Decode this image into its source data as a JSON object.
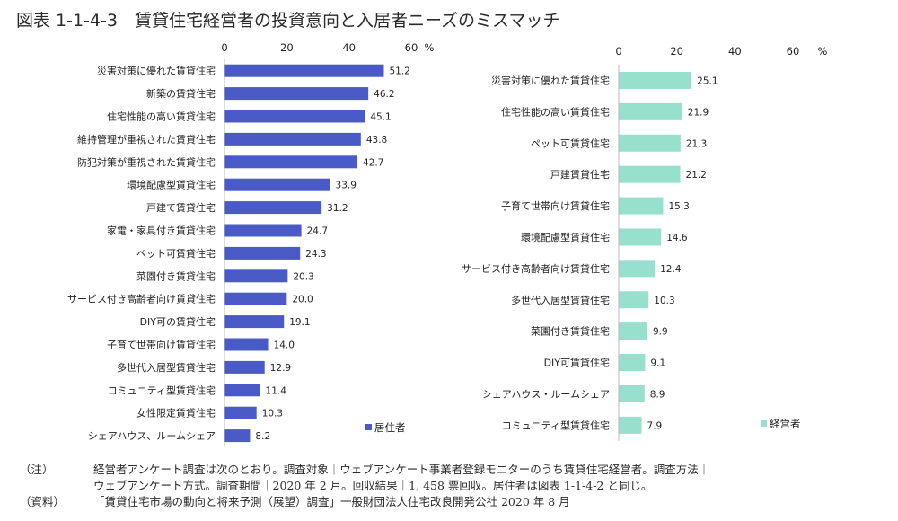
{
  "figure": {
    "title": "図表 1-1-4-3　賃貸住宅経営者の投資意向と入居者ニーズのミスマッチ"
  },
  "chart_data": [
    {
      "type": "bar",
      "orientation": "horizontal",
      "title": "",
      "unit": "%",
      "xlim": [
        0,
        60
      ],
      "ticks": [
        0,
        20,
        40,
        60
      ],
      "grid": false,
      "legend": "居住者",
      "legend_position": "bottom-right",
      "color": "#4a5bc8",
      "categories": [
        "災害対策に優れた賃貸住宅",
        "新築の賃貸住宅",
        "住宅性能の高い賃貸住宅",
        "維持管理が重視された賃貸住宅",
        "防犯対策が重視された賃貸住宅",
        "環境配慮型賃貸住宅",
        "戸建て賃貸住宅",
        "家電・家具付き賃貸住宅",
        "ペット可賃貸住宅",
        "菜園付き賃貸住宅",
        "サービス付き高齢者向け賃貸住宅",
        "DIY可の賃貸住宅",
        "子育て世帯向け賃貸住宅",
        "多世代入居型賃貸住宅",
        "コミュニティ型賃貸住宅",
        "女性限定賃貸住宅",
        "シェアハウス、ルームシェア"
      ],
      "values": [
        51.2,
        46.2,
        45.1,
        43.8,
        42.7,
        33.9,
        31.2,
        24.7,
        24.3,
        20.3,
        20.0,
        19.1,
        14.0,
        12.9,
        11.4,
        10.3,
        8.2
      ],
      "value_labels": [
        "51.2",
        "46.2",
        "45.1",
        "43.8",
        "42.7",
        "33.9",
        "31.2",
        "24.7",
        "24.3",
        "20.3",
        "20.0",
        "19.1",
        "14.0",
        "12.9",
        "11.4",
        "10.3",
        "8.2"
      ]
    },
    {
      "type": "bar",
      "orientation": "horizontal",
      "title": "",
      "unit": "%",
      "xlim": [
        0,
        60
      ],
      "ticks": [
        0,
        20,
        40,
        60
      ],
      "grid": false,
      "legend": "経営者",
      "legend_position": "bottom-right",
      "color": "#97e0cd",
      "categories": [
        "災害対策に優れた賃貸住宅",
        "住宅性能の高い賃貸住宅",
        "ペット可賃貸住宅",
        "戸建賃貸住宅",
        "子育て世帯向け賃貸住宅",
        "環境配慮型賃貸住宅",
        "サービス付き高齢者向け賃貸住宅",
        "多世代入居型賃貸住宅",
        "菜園付き賃貸住宅",
        "DIY可賃貸住宅",
        "シェアハウス・ルームシェア",
        "コミュニティ型賃貸住宅"
      ],
      "values": [
        25.1,
        21.9,
        21.3,
        21.2,
        15.3,
        14.6,
        12.4,
        10.3,
        9.9,
        9.1,
        8.9,
        7.9
      ],
      "value_labels": [
        "25.1",
        "21.9",
        "21.3",
        "21.2",
        "15.3",
        "14.6",
        "12.4",
        "10.3",
        "9.9",
        "9.1",
        "8.9",
        "7.9"
      ]
    }
  ],
  "notes": [
    {
      "key": "（注）",
      "lines": [
        "経営者アンケート調査は次のとおり。調査対象｜ウェブアンケート事業者登録モニターのうち賃貸住宅経営者。調査方法｜",
        "ウェブアンケート方式。調査期間｜2020 年 2 月。回収結果｜1, 458 票回収。居住者は図表 1-1-4-2 と同じ。"
      ]
    },
    {
      "key": "（資料）",
      "lines": [
        "「賃貸住宅市場の動向と将来予測（展望）調査」一般財団法人住宅改良開発公社 2020 年 8 月"
      ]
    }
  ]
}
